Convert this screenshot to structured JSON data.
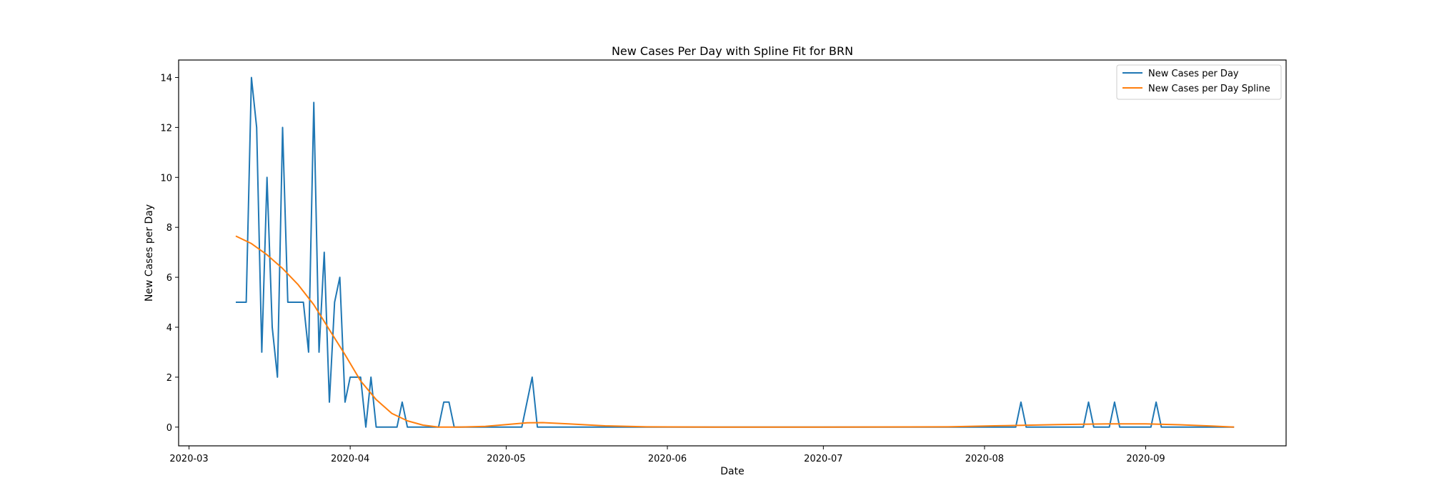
{
  "chart_data": {
    "type": "line",
    "title": "New Cases Per Day with Spline Fit for BRN",
    "xlabel": "Date",
    "ylabel": "New Cases per Day",
    "xlim": [
      "2020-02-28",
      "2020-09-28"
    ],
    "ylim": [
      -0.75,
      14.7
    ],
    "x_ticks": [
      "2020-03-01",
      "2020-04-01",
      "2020-05-01",
      "2020-06-01",
      "2020-07-01",
      "2020-08-01",
      "2020-09-01"
    ],
    "x_tick_labels": [
      "2020-03",
      "2020-04",
      "2020-05",
      "2020-06",
      "2020-07",
      "2020-08",
      "2020-09"
    ],
    "y_ticks": [
      0,
      2,
      4,
      6,
      8,
      10,
      12,
      14
    ],
    "grid": false,
    "legend_position": "top-right",
    "series": [
      {
        "name": "New Cases per Day",
        "color": "#1f77b4",
        "points": [
          [
            "2020-03-10",
            5
          ],
          [
            "2020-03-12",
            5
          ],
          [
            "2020-03-13",
            14
          ],
          [
            "2020-03-14",
            12
          ],
          [
            "2020-03-15",
            3
          ],
          [
            "2020-03-16",
            10
          ],
          [
            "2020-03-17",
            4
          ],
          [
            "2020-03-18",
            2
          ],
          [
            "2020-03-19",
            12
          ],
          [
            "2020-03-20",
            5
          ],
          [
            "2020-03-21",
            5
          ],
          [
            "2020-03-22",
            5
          ],
          [
            "2020-03-23",
            5
          ],
          [
            "2020-03-24",
            3
          ],
          [
            "2020-03-25",
            13
          ],
          [
            "2020-03-26",
            3
          ],
          [
            "2020-03-27",
            7
          ],
          [
            "2020-03-28",
            1
          ],
          [
            "2020-03-29",
            5
          ],
          [
            "2020-03-30",
            6
          ],
          [
            "2020-03-31",
            1
          ],
          [
            "2020-04-01",
            2
          ],
          [
            "2020-04-02",
            2
          ],
          [
            "2020-04-03",
            2
          ],
          [
            "2020-04-04",
            0
          ],
          [
            "2020-04-05",
            2
          ],
          [
            "2020-04-06",
            0
          ],
          [
            "2020-04-10",
            0
          ],
          [
            "2020-04-11",
            1
          ],
          [
            "2020-04-12",
            0
          ],
          [
            "2020-04-18",
            0
          ],
          [
            "2020-04-19",
            1
          ],
          [
            "2020-04-20",
            1
          ],
          [
            "2020-04-21",
            0
          ],
          [
            "2020-05-04",
            0
          ],
          [
            "2020-05-06",
            2
          ],
          [
            "2020-05-07",
            0
          ],
          [
            "2020-08-07",
            0
          ],
          [
            "2020-08-08",
            1
          ],
          [
            "2020-08-09",
            0
          ],
          [
            "2020-08-20",
            0
          ],
          [
            "2020-08-21",
            1
          ],
          [
            "2020-08-22",
            0
          ],
          [
            "2020-08-25",
            0
          ],
          [
            "2020-08-26",
            1
          ],
          [
            "2020-08-27",
            0
          ],
          [
            "2020-09-02",
            0
          ],
          [
            "2020-09-03",
            1
          ],
          [
            "2020-09-04",
            0
          ],
          [
            "2020-09-18",
            0
          ]
        ]
      },
      {
        "name": "New Cases per Day Spline",
        "color": "#ff7f0e",
        "points": [
          [
            "2020-03-10",
            7.65
          ],
          [
            "2020-03-13",
            7.35
          ],
          [
            "2020-03-16",
            6.9
          ],
          [
            "2020-03-19",
            6.35
          ],
          [
            "2020-03-22",
            5.7
          ],
          [
            "2020-03-25",
            4.9
          ],
          [
            "2020-03-28",
            3.9
          ],
          [
            "2020-03-31",
            2.9
          ],
          [
            "2020-04-03",
            1.85
          ],
          [
            "2020-04-06",
            1.1
          ],
          [
            "2020-04-09",
            0.55
          ],
          [
            "2020-04-12",
            0.25
          ],
          [
            "2020-04-15",
            0.08
          ],
          [
            "2020-04-18",
            0.0
          ],
          [
            "2020-04-22",
            0.0
          ],
          [
            "2020-04-27",
            0.03
          ],
          [
            "2020-05-01",
            0.1
          ],
          [
            "2020-05-05",
            0.17
          ],
          [
            "2020-05-08",
            0.18
          ],
          [
            "2020-05-13",
            0.13
          ],
          [
            "2020-05-20",
            0.05
          ],
          [
            "2020-05-28",
            0.01
          ],
          [
            "2020-06-10",
            0.0
          ],
          [
            "2020-07-01",
            0.0
          ],
          [
            "2020-07-25",
            0.01
          ],
          [
            "2020-08-05",
            0.06
          ],
          [
            "2020-08-15",
            0.1
          ],
          [
            "2020-08-25",
            0.13
          ],
          [
            "2020-09-01",
            0.13
          ],
          [
            "2020-09-08",
            0.09
          ],
          [
            "2020-09-14",
            0.04
          ],
          [
            "2020-09-18",
            0.0
          ]
        ]
      }
    ]
  }
}
